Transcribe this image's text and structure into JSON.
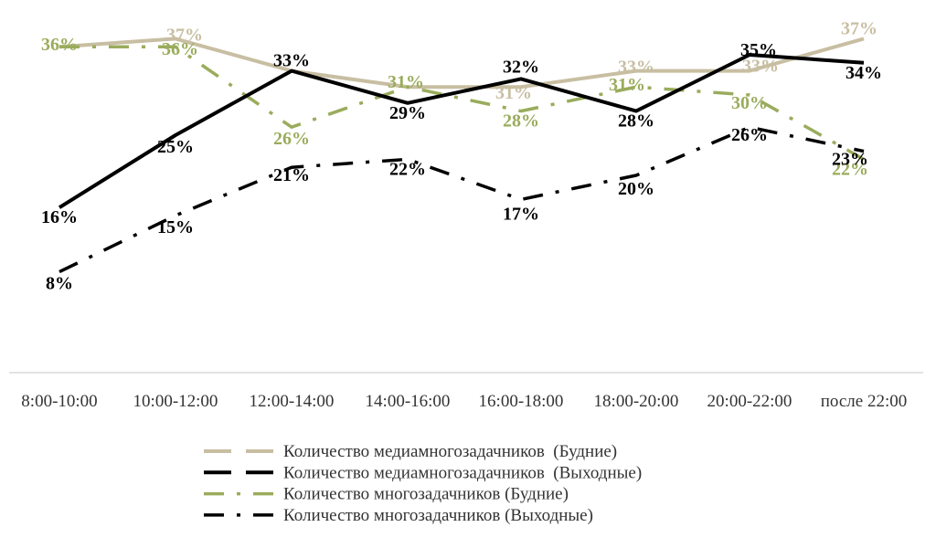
{
  "chart_data": {
    "type": "line",
    "title": "",
    "xlabel": "",
    "ylabel": "",
    "ylim": [
      0,
      40
    ],
    "grid": false,
    "legend_position": "bottom",
    "categories": [
      "8:00-10:00",
      "10:00-12:00",
      "12:00-14:00",
      "14:00-16:00",
      "16:00-18:00",
      "18:00-20:00",
      "20:00-22:00",
      "после 22:00"
    ],
    "series": [
      {
        "name": "Количество медиамногозадачников  (Будние)",
        "values": [
          36,
          37,
          33,
          31,
          31,
          33,
          33,
          37
        ],
        "labels": [
          "",
          "37%",
          "",
          "",
          "31%",
          "33%",
          "33%",
          "37%"
        ],
        "color": "#c8bea2",
        "dash": "solid",
        "legend_dash": "long-dash",
        "width": 4
      },
      {
        "name": "Количество медиамногозадачников  (Выходные)",
        "values": [
          16,
          25,
          33,
          29,
          32,
          28,
          35,
          34
        ],
        "labels": [
          "16%",
          "25%",
          "33%",
          "29%",
          "32%",
          "28%",
          "35%",
          "34%"
        ],
        "color": "#000000",
        "dash": "solid",
        "legend_dash": "long-dash",
        "width": 4
      },
      {
        "name": "Количество многозадачников (Будние)",
        "values": [
          36,
          36,
          26,
          31,
          28,
          31,
          30,
          22
        ],
        "labels": [
          "36%",
          "36%",
          "26%",
          "31%",
          "28%",
          "31%",
          "30%",
          "22%"
        ],
        "color": "#9aac5c",
        "dash": "dash-dot",
        "legend_dash": "dash-dot",
        "width": 3.5
      },
      {
        "name": "Количество многозадачников (Выходные)",
        "values": [
          8,
          15,
          21,
          22,
          17,
          20,
          26,
          23
        ],
        "labels": [
          "8%",
          "15%",
          "21%",
          "22%",
          "17%",
          "20%",
          "26%",
          "23%"
        ],
        "color": "#000000",
        "dash": "dash-dot",
        "legend_dash": "dash-dot",
        "width": 3.5
      }
    ]
  }
}
